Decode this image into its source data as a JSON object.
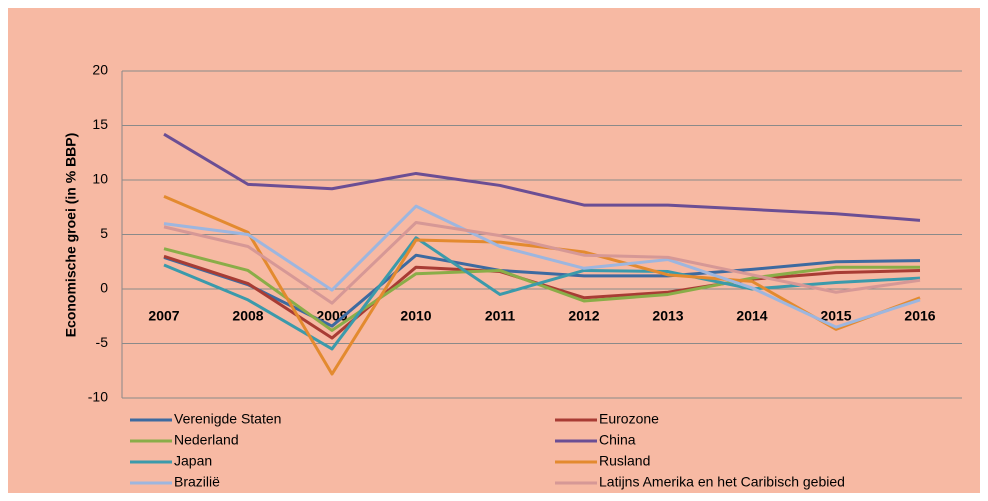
{
  "chart_data": {
    "type": "line",
    "y_axis_label": "Economische groei (in % BBP)",
    "categories": [
      "2007",
      "2008",
      "2009",
      "2010",
      "2011",
      "2012",
      "2013",
      "2014",
      "2015",
      "2016"
    ],
    "series": [
      {
        "name": "Verenigde Staten",
        "color": "#3d6aa0",
        "values": [
          2.9,
          0.4,
          -3.4,
          3.1,
          1.7,
          1.2,
          1.2,
          1.8,
          2.5,
          2.6
        ]
      },
      {
        "name": "Eurozone",
        "color": "#a83c34",
        "values": [
          3.0,
          0.5,
          -4.5,
          2.0,
          1.6,
          -0.8,
          -0.3,
          0.9,
          1.5,
          1.7
        ]
      },
      {
        "name": "Nederland",
        "color": "#8aad48",
        "values": [
          3.7,
          1.7,
          -3.8,
          1.4,
          1.7,
          -1.1,
          -0.5,
          1.0,
          2.0,
          2.0
        ]
      },
      {
        "name": "China",
        "color": "#6b4e94",
        "values": [
          14.2,
          9.6,
          9.2,
          10.6,
          9.5,
          7.7,
          7.7,
          7.3,
          6.9,
          6.3
        ]
      },
      {
        "name": "Japan",
        "color": "#3b9aab",
        "values": [
          2.2,
          -1.0,
          -5.5,
          4.7,
          -0.5,
          1.7,
          1.6,
          0.0,
          0.6,
          1.0
        ]
      },
      {
        "name": "Rusland",
        "color": "#e38a2f",
        "values": [
          8.5,
          5.2,
          -7.8,
          4.5,
          4.3,
          3.4,
          1.3,
          0.7,
          -3.7,
          -0.8
        ]
      },
      {
        "name": "Braziliё",
        "color": "#9db6df",
        "values": [
          6.0,
          5.0,
          -0.1,
          7.6,
          3.9,
          1.9,
          2.7,
          0.1,
          -3.5,
          -1.0
        ]
      },
      {
        "name": "Latijns Amerika en het Caribisch gebied",
        "color": "#d69896",
        "values": [
          5.7,
          3.9,
          -1.3,
          6.1,
          4.9,
          3.1,
          2.9,
          1.3,
          -0.3,
          0.8
        ]
      }
    ],
    "ylim": [
      -10,
      20
    ],
    "yticks": [
      -10,
      -5,
      0,
      5,
      10,
      15,
      20
    ],
    "grid": true,
    "legend": "bottom"
  }
}
